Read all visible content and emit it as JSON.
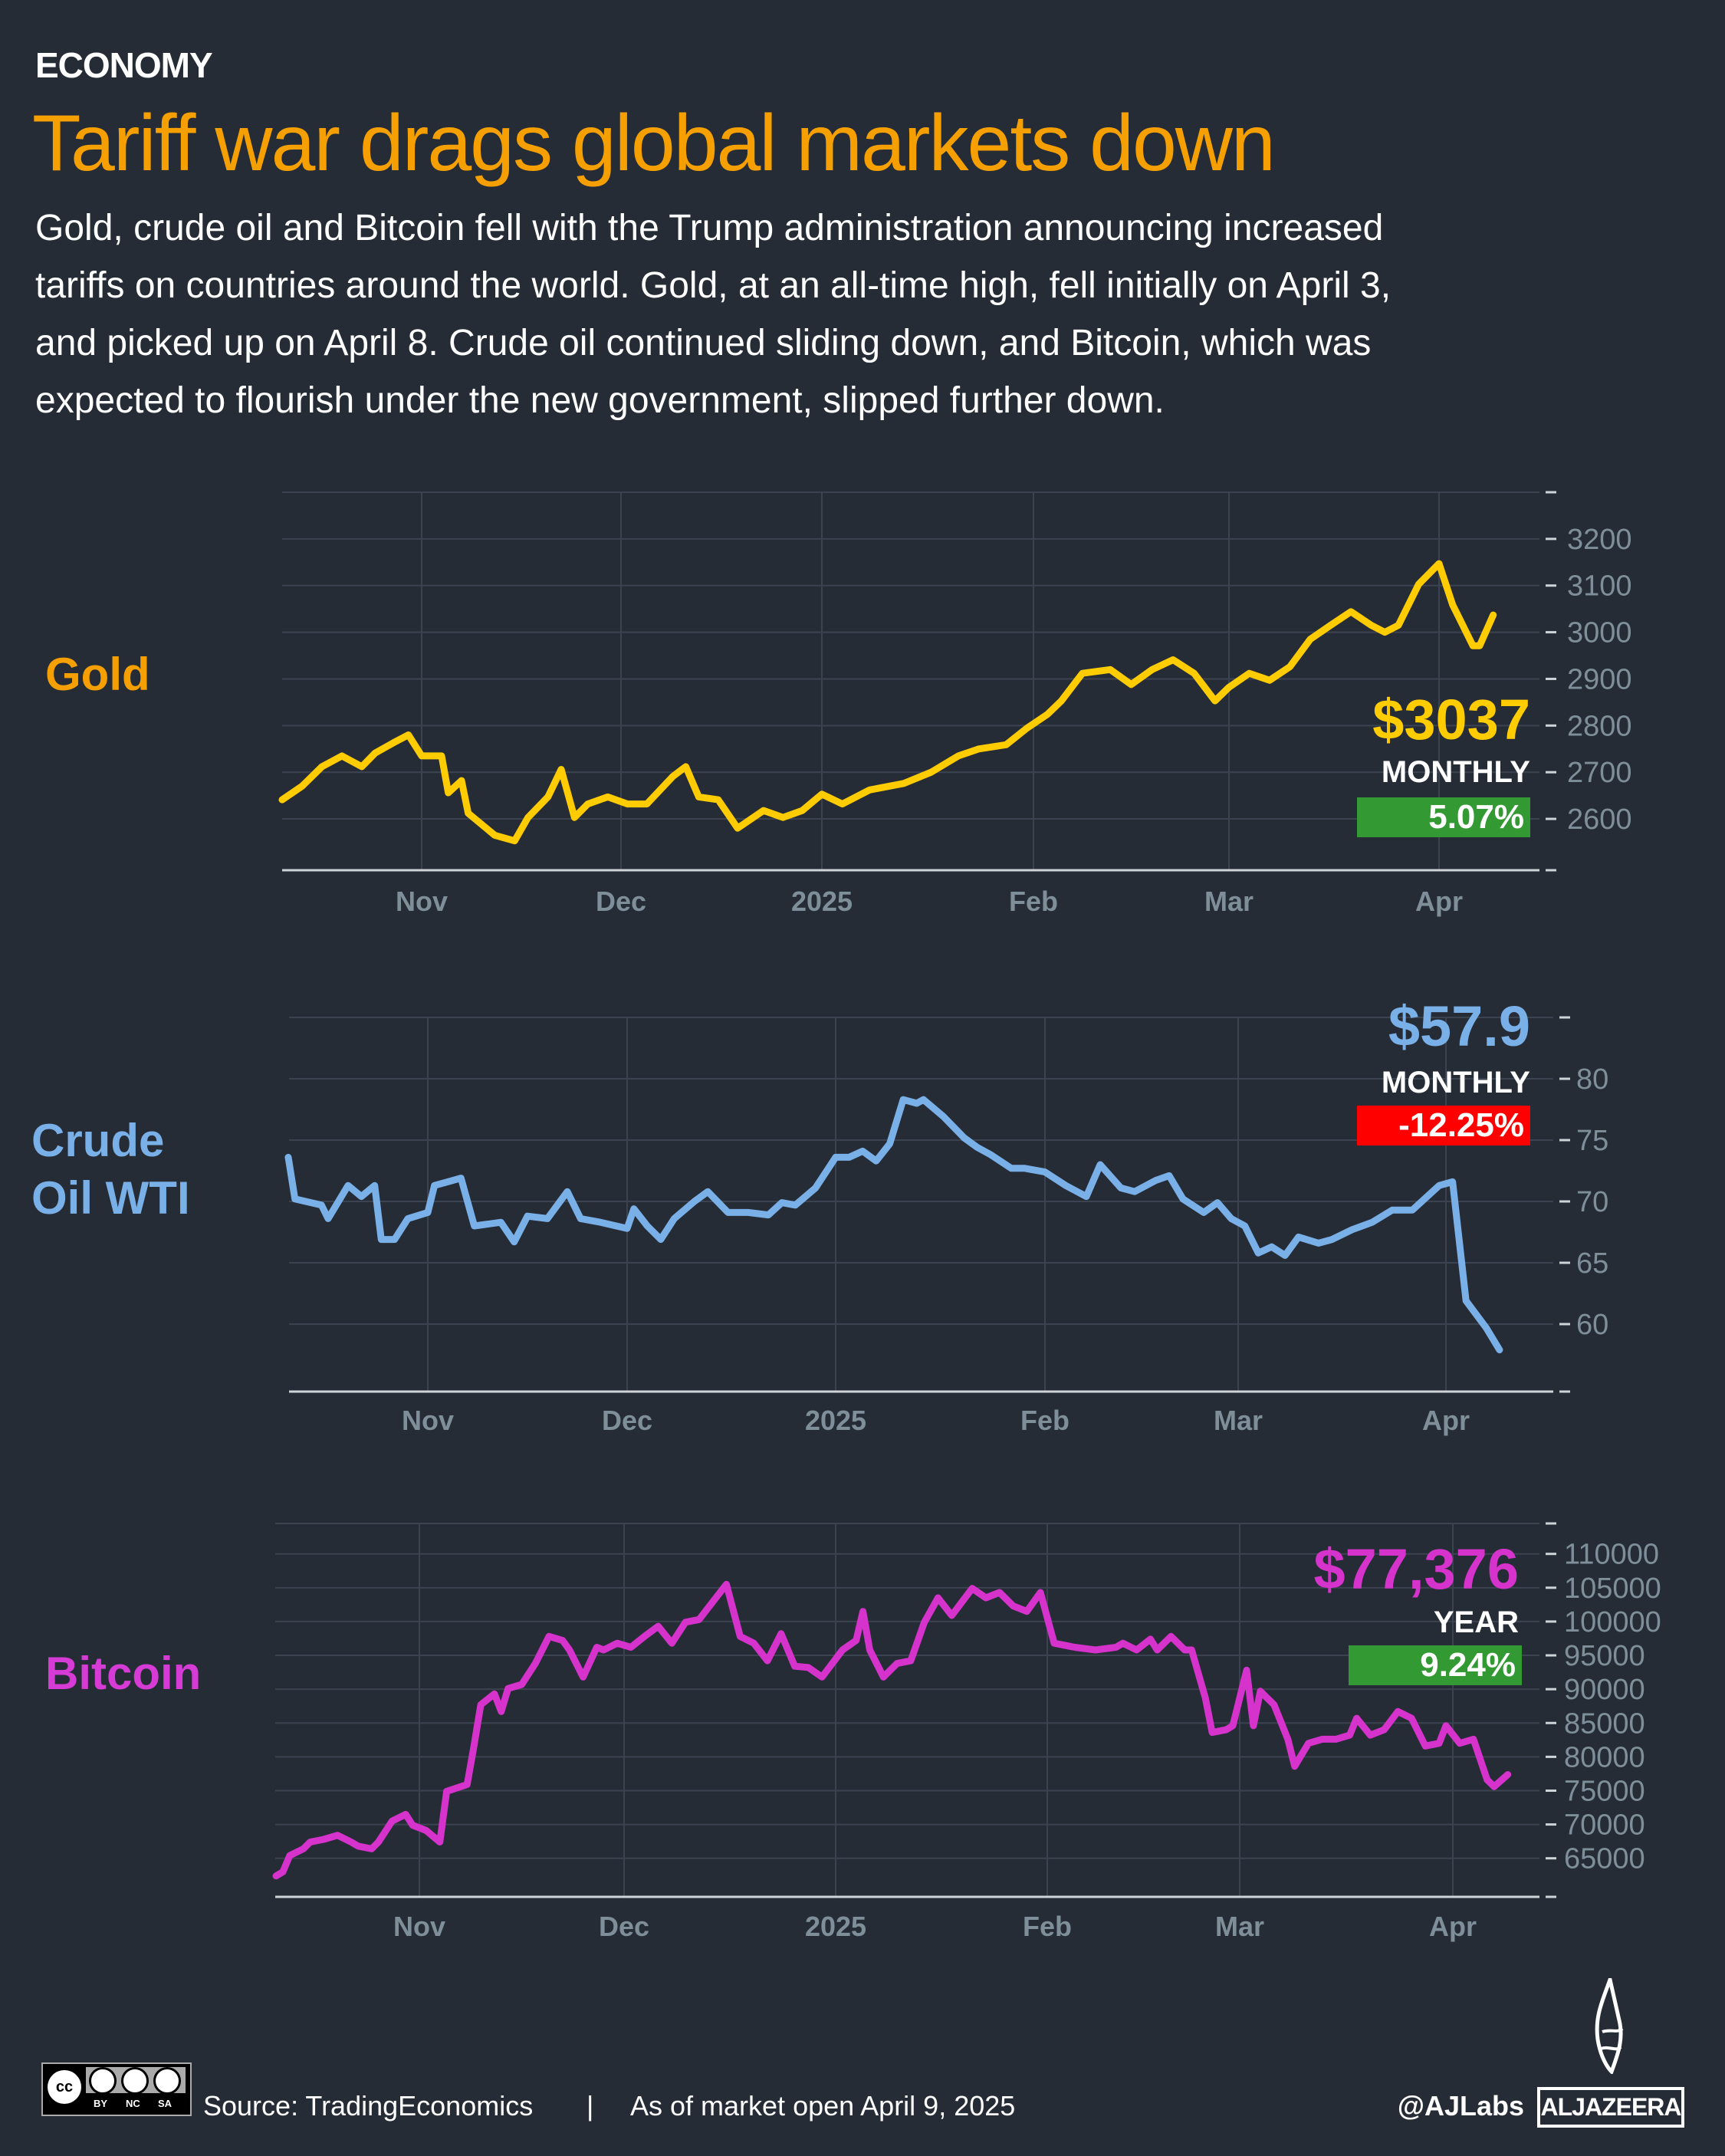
{
  "header": {
    "kicker": "ECONOMY",
    "title": "Tariff war drags global markets down",
    "subtitle_lines": [
      "Gold, crude oil and Bitcoin fell with the Trump administration announcing increased",
      "tariffs on countries around the world. Gold, at an all-time high, fell initially on April 3,",
      "and picked up on April 8. Crude oil continued sliding down, and Bitcoin, which was",
      "expected to flourish under the new government, slipped further down."
    ]
  },
  "colors": {
    "background": "#262c36",
    "title": "#f5a000",
    "gold": "#ffcc00",
    "gold_label": "#f5a000",
    "oil": "#7ab0e8",
    "bitcoin": "#d633cc",
    "positive": "#339933",
    "negative": "#ff0000",
    "grid": "#3c4350",
    "tick_label": "#7f8f99"
  },
  "chart_data": [
    {
      "type": "line",
      "key": "gold",
      "label": "Gold",
      "value_label": "$3037",
      "period": "MONTHLY",
      "change": "5.07%",
      "change_sign": "positive",
      "xticks": [
        "Nov",
        "Dec",
        "2025",
        "Feb",
        "Mar",
        "Apr"
      ],
      "yticks": [
        "3200",
        "3100",
        "3000",
        "2900",
        "2800",
        "2700",
        "2600"
      ],
      "ylim": [
        2490,
        3300
      ],
      "grid": true,
      "x": [
        "2024-10-11",
        "2024-10-14",
        "2024-10-17",
        "2024-10-20",
        "2024-10-23",
        "2024-10-25",
        "2024-10-28",
        "2024-10-30",
        "2024-11-01",
        "2024-11-04",
        "2024-11-05",
        "2024-11-07",
        "2024-11-08",
        "2024-11-12",
        "2024-11-15",
        "2024-11-17",
        "2024-11-20",
        "2024-11-22",
        "2024-11-24",
        "2024-11-26",
        "2024-11-29",
        "2024-12-02",
        "2024-12-05",
        "2024-12-09",
        "2024-12-11",
        "2024-12-13",
        "2024-12-16",
        "2024-12-19",
        "2024-12-23",
        "2024-12-26",
        "2024-12-29",
        "2025-01-01",
        "2025-01-04",
        "2025-01-08",
        "2025-01-13",
        "2025-01-17",
        "2025-01-21",
        "2025-01-24",
        "2025-01-28",
        "2025-01-31",
        "2025-02-03",
        "2025-02-05",
        "2025-02-08",
        "2025-02-12",
        "2025-02-15",
        "2025-02-18",
        "2025-02-21",
        "2025-02-24",
        "2025-02-27",
        "2025-03-01",
        "2025-03-04",
        "2025-03-07",
        "2025-03-10",
        "2025-03-13",
        "2025-03-16",
        "2025-03-19",
        "2025-03-22",
        "2025-03-24",
        "2025-03-26",
        "2025-03-29",
        "2025-04-01",
        "2025-04-03",
        "2025-04-06",
        "2025-04-07",
        "2025-04-09"
      ],
      "y": [
        2641,
        2670,
        2712,
        2735,
        2712,
        2741,
        2765,
        2780,
        2735,
        2735,
        2656,
        2682,
        2612,
        2565,
        2553,
        2603,
        2647,
        2706,
        2603,
        2632,
        2647,
        2632,
        2632,
        2691,
        2712,
        2647,
        2641,
        2580,
        2618,
        2603,
        2618,
        2653,
        2632,
        2662,
        2676,
        2700,
        2735,
        2750,
        2759,
        2794,
        2824,
        2853,
        2912,
        2920,
        2888,
        2920,
        2941,
        2912,
        2853,
        2882,
        2912,
        2897,
        2926,
        2985,
        3015,
        3044,
        3015,
        3000,
        3015,
        3103,
        3147,
        3059,
        2971,
        2971,
        3037
      ]
    },
    {
      "type": "line",
      "key": "oil",
      "label_lines": [
        "Crude",
        "Oil WTI"
      ],
      "value_label": "$57.9",
      "period": "MONTHLY",
      "change": "-12.25%",
      "change_sign": "negative",
      "xticks": [
        "Nov",
        "Dec",
        "2025",
        "Feb",
        "Mar",
        "Apr"
      ],
      "yticks": [
        "80",
        "75",
        "70",
        "65",
        "60"
      ],
      "ylim": [
        54.5,
        85
      ],
      "grid": true,
      "x": [
        "2024-10-11",
        "2024-10-12",
        "2024-10-16",
        "2024-10-17",
        "2024-10-20",
        "2024-10-22",
        "2024-10-24",
        "2024-10-25",
        "2024-10-27",
        "2024-10-29",
        "2024-11-01",
        "2024-11-02",
        "2024-11-04",
        "2024-11-06",
        "2024-11-08",
        "2024-11-12",
        "2024-11-14",
        "2024-11-16",
        "2024-11-19",
        "2024-11-22",
        "2024-11-24",
        "2024-11-27",
        "2024-12-01",
        "2024-12-02",
        "2024-12-04",
        "2024-12-06",
        "2024-12-08",
        "2024-12-11",
        "2024-12-13",
        "2024-12-16",
        "2024-12-19",
        "2024-12-22",
        "2024-12-24",
        "2024-12-26",
        "2024-12-29",
        "2025-01-01",
        "2025-01-03",
        "2025-01-05",
        "2025-01-07",
        "2025-01-09",
        "2025-01-11",
        "2025-01-13",
        "2025-01-14",
        "2025-01-17",
        "2025-01-20",
        "2025-01-22",
        "2025-01-24",
        "2025-01-27",
        "2025-01-29",
        "2025-02-01",
        "2025-02-04",
        "2025-02-07",
        "2025-02-09",
        "2025-02-12",
        "2025-02-14",
        "2025-02-17",
        "2025-02-19",
        "2025-02-21",
        "2025-02-24",
        "2025-02-26",
        "2025-02-28",
        "2025-03-02",
        "2025-03-04",
        "2025-03-06",
        "2025-03-08",
        "2025-03-10",
        "2025-03-13",
        "2025-03-15",
        "2025-03-18",
        "2025-03-21",
        "2025-03-24",
        "2025-03-27",
        "2025-03-30",
        "2025-03-31",
        "2025-04-02",
        "2025-04-04",
        "2025-04-07",
        "2025-04-09"
      ],
      "y": [
        73.6,
        70.2,
        69.7,
        68.6,
        71.3,
        70.4,
        71.3,
        66.9,
        66.9,
        68.6,
        69.1,
        71.3,
        71.6,
        71.9,
        68.0,
        68.3,
        66.7,
        68.8,
        68.6,
        70.8,
        68.6,
        68.3,
        67.8,
        69.4,
        68.0,
        66.9,
        68.6,
        70.0,
        70.8,
        69.1,
        69.1,
        68.9,
        69.9,
        69.7,
        71.1,
        73.6,
        73.6,
        74.1,
        73.3,
        74.7,
        78.3,
        78.0,
        78.3,
        76.9,
        75.2,
        74.4,
        73.8,
        72.7,
        72.7,
        72.4,
        71.3,
        70.4,
        73.0,
        71.1,
        70.8,
        71.7,
        72.1,
        70.2,
        69.1,
        69.9,
        68.6,
        68.0,
        65.8,
        66.3,
        65.6,
        67.1,
        66.6,
        66.9,
        67.7,
        68.3,
        69.3,
        69.3,
        70.8,
        71.3,
        71.6,
        61.9,
        59.7,
        57.9
      ]
    },
    {
      "type": "line",
      "key": "bitcoin",
      "label": "Bitcoin",
      "value_label": "$77,376",
      "period": "YEAR",
      "change": "9.24%",
      "change_sign": "positive",
      "xticks": [
        "Nov",
        "Dec",
        "2025",
        "Feb",
        "Mar",
        "Apr"
      ],
      "yticks": [
        "110000",
        "105000",
        "100000",
        "95000",
        "90000",
        "85000",
        "80000",
        "75000",
        "70000",
        "65000"
      ],
      "ylim": [
        59300,
        114500
      ],
      "grid": true,
      "x": [
        "2024-10-11",
        "2024-10-12",
        "2024-10-13",
        "2024-10-15",
        "2024-10-16",
        "2024-10-18",
        "2024-10-20",
        "2024-10-22",
        "2024-10-23",
        "2024-10-25",
        "2024-10-26",
        "2024-10-28",
        "2024-10-30",
        "2024-10-31",
        "2024-11-02",
        "2024-11-04",
        "2024-11-05",
        "2024-11-08",
        "2024-11-09",
        "2024-11-10",
        "2024-11-12",
        "2024-11-13",
        "2024-11-14",
        "2024-11-16",
        "2024-11-18",
        "2024-11-20",
        "2024-11-22",
        "2024-11-23",
        "2024-11-25",
        "2024-11-27",
        "2024-11-28",
        "2024-11-30",
        "2024-12-02",
        "2024-12-04",
        "2024-12-06",
        "2024-12-08",
        "2024-12-10",
        "2024-12-12",
        "2024-12-14",
        "2024-12-16",
        "2024-12-18",
        "2024-12-20",
        "2024-12-22",
        "2024-12-24",
        "2024-12-26",
        "2024-12-28",
        "2024-12-30",
        "2025-01-02",
        "2025-01-04",
        "2025-01-05",
        "2025-01-06",
        "2025-01-08",
        "2025-01-10",
        "2025-01-12",
        "2025-01-14",
        "2025-01-16",
        "2025-01-18",
        "2025-01-21",
        "2025-01-23",
        "2025-01-25",
        "2025-01-27",
        "2025-01-29",
        "2025-01-31",
        "2025-02-02",
        "2025-02-05",
        "2025-02-08",
        "2025-02-11",
        "2025-02-12",
        "2025-02-14",
        "2025-02-16",
        "2025-02-17",
        "2025-02-19",
        "2025-02-21",
        "2025-02-22",
        "2025-02-24",
        "2025-02-25",
        "2025-02-27",
        "2025-02-28",
        "2025-03-02",
        "2025-03-03",
        "2025-03-04",
        "2025-03-06",
        "2025-03-08",
        "2025-03-09",
        "2025-03-11",
        "2025-03-13",
        "2025-03-15",
        "2025-03-17",
        "2025-03-18",
        "2025-03-20",
        "2025-03-22",
        "2025-03-24",
        "2025-03-26",
        "2025-03-28",
        "2025-03-30",
        "2025-03-31",
        "2025-04-02",
        "2025-04-04",
        "2025-04-06",
        "2025-04-07",
        "2025-04-09"
      ],
      "y": [
        62400,
        63000,
        65400,
        66400,
        67400,
        67800,
        68400,
        67400,
        66800,
        66400,
        67400,
        70500,
        71500,
        69900,
        69100,
        67400,
        74900,
        75900,
        81600,
        87700,
        89300,
        86700,
        90100,
        90700,
        93800,
        97800,
        97200,
        95800,
        91800,
        96200,
        95800,
        96800,
        96200,
        97800,
        99300,
        96800,
        99900,
        100300,
        102900,
        105500,
        97800,
        96800,
        94200,
        98200,
        93400,
        93200,
        91800,
        95800,
        97200,
        101500,
        95800,
        91800,
        93800,
        94200,
        99900,
        103500,
        100900,
        104900,
        103500,
        104300,
        102300,
        101500,
        104300,
        96800,
        96200,
        95800,
        96200,
        96800,
        95800,
        97400,
        95800,
        97800,
        95800,
        95800,
        88700,
        83600,
        84000,
        84600,
        92800,
        84600,
        89700,
        87700,
        82600,
        78600,
        82000,
        82600,
        82600,
        83200,
        85700,
        83200,
        84000,
        86700,
        85700,
        81600,
        82000,
        84600,
        82000,
        82600,
        76600,
        75600,
        77376
      ]
    }
  ],
  "footer": {
    "license_labels": [
      "BY",
      "NC",
      "SA"
    ],
    "source": "Source:  TradingEconomics",
    "separator": "|",
    "as_of": "As of  market open April 9, 2025",
    "handle": "@AJLabs",
    "brand": "ALJAZEERA"
  }
}
